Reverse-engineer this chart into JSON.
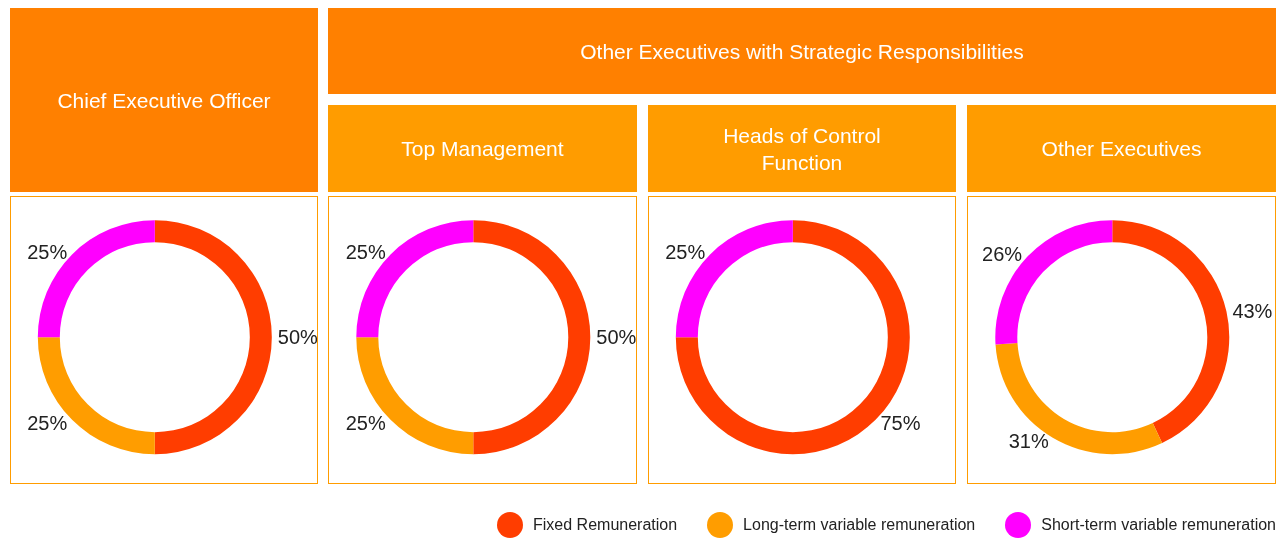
{
  "chart_data": [
    {
      "type": "donut",
      "title": "Chief Executive Officer",
      "categories": [
        null,
        null,
        null
      ],
      "values": [
        50,
        25,
        25
      ],
      "colors": [
        "#ff3d00",
        "#ff9d00",
        "#ff00ff"
      ],
      "value_labels": [
        "50%",
        "25%",
        "25%"
      ]
    },
    {
      "type": "donut",
      "title": "Top Management",
      "annotations": [
        "Other Executives with Strategic Responsibilities"
      ],
      "categories": [
        null,
        null,
        null
      ],
      "values": [
        50,
        25,
        25
      ],
      "colors": [
        "#ff3d00",
        "#ff9d00",
        "#ff00ff"
      ],
      "value_labels": [
        "50%",
        "25%",
        "25%"
      ]
    },
    {
      "type": "donut",
      "title": "Heads of Control Function",
      "categories": [
        null,
        null
      ],
      "values": [
        75,
        25
      ],
      "colors": [
        "#ff3d00",
        "#ff00ff"
      ],
      "value_labels": [
        "75%",
        "25%"
      ]
    },
    {
      "type": "donut",
      "title": "Other Executives",
      "categories": [
        "Fixed Remuneration",
        "Long-term variable remuneration",
        "Short-term variable remuneration"
      ],
      "values": [
        43,
        31,
        26
      ],
      "colors": [
        "#ff3d00",
        "#ff9d00",
        "#ff00ff"
      ],
      "value_labels": [
        "43%",
        "31%",
        "26%"
      ],
      "legend": "bottom left"
    }
  ]
}
